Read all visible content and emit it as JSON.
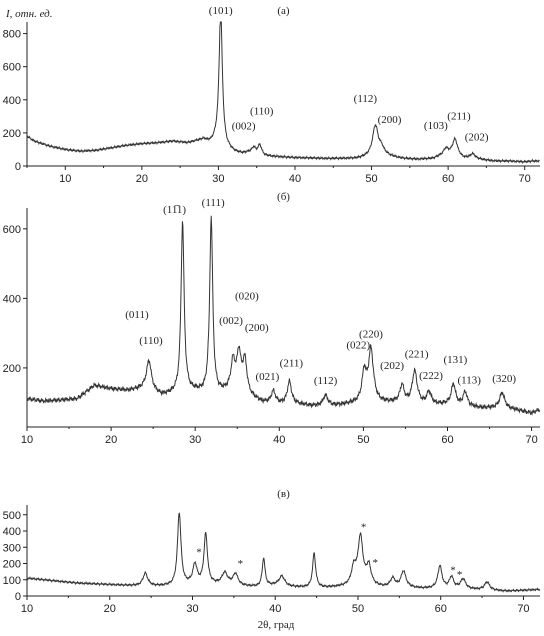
{
  "figure": {
    "y_label": "I, отн. ед.",
    "x_label": "2θ, град",
    "colors": {
      "line": "#333333",
      "axis": "#222222"
    }
  },
  "chart_data": [
    {
      "type": "line",
      "panel": "(а)",
      "xlim": [
        5,
        72
      ],
      "ylim": [
        0,
        870
      ],
      "xticks": [
        "10",
        "20",
        "30",
        "40",
        "50",
        "60",
        "70"
      ],
      "yticks": [
        "0",
        "200",
        "400",
        "600",
        "800"
      ],
      "baseline": [
        [
          5,
          180
        ],
        [
          6,
          150
        ],
        [
          8,
          120
        ],
        [
          10,
          100
        ],
        [
          12,
          90
        ],
        [
          14,
          95
        ],
        [
          16,
          110
        ],
        [
          18,
          125
        ],
        [
          20,
          135
        ],
        [
          22,
          140
        ],
        [
          24,
          150
        ],
        [
          26,
          140
        ],
        [
          27,
          150
        ],
        [
          28,
          160
        ],
        [
          29,
          140
        ],
        [
          30,
          160
        ],
        [
          31,
          110
        ],
        [
          32,
          85
        ],
        [
          33,
          75
        ],
        [
          34,
          80
        ],
        [
          36,
          60
        ],
        [
          38,
          55
        ],
        [
          40,
          50
        ],
        [
          42,
          48
        ],
        [
          44,
          45
        ],
        [
          46,
          45
        ],
        [
          48,
          45
        ],
        [
          50,
          55
        ],
        [
          52,
          60
        ],
        [
          54,
          45
        ],
        [
          56,
          40
        ],
        [
          58,
          45
        ],
        [
          59,
          60
        ],
        [
          60,
          70
        ],
        [
          61,
          60
        ],
        [
          62,
          45
        ],
        [
          64,
          40
        ],
        [
          66,
          30
        ],
        [
          68,
          30
        ],
        [
          70,
          25
        ],
        [
          71,
          30
        ]
      ],
      "peaks": [
        {
          "label": "(101)",
          "x": 30.3,
          "height": 800,
          "width": 0.25
        },
        {
          "label": "(002)",
          "x": 34.6,
          "height": 35,
          "width": 0.3
        },
        {
          "label": "(110)",
          "x": 35.4,
          "height": 60,
          "width": 0.3
        },
        {
          "label": "(112)",
          "x": 50.5,
          "height": 185,
          "width": 0.45
        },
        {
          "label": "(200)",
          "x": 51.3,
          "height": 40,
          "width": 0.4
        },
        {
          "label": "(103)",
          "x": 59.7,
          "height": 35,
          "width": 0.35
        },
        {
          "label": "(211)",
          "x": 60.9,
          "height": 100,
          "width": 0.4
        },
        {
          "label": "(202)",
          "x": 63.2,
          "height": 30,
          "width": 0.4
        }
      ]
    },
    {
      "type": "line",
      "panel": "(б)",
      "xlim": [
        10,
        71
      ],
      "ylim": [
        30,
        660
      ],
      "xticks": [
        "10",
        "20",
        "30",
        "40",
        "50",
        "60",
        "70"
      ],
      "yticks": [
        "200",
        "400",
        "600"
      ],
      "baseline": [
        [
          10,
          112
        ],
        [
          12,
          105
        ],
        [
          14,
          108
        ],
        [
          16,
          112
        ],
        [
          18,
          150
        ],
        [
          20,
          140
        ],
        [
          22,
          135
        ],
        [
          24,
          140
        ],
        [
          26,
          120
        ],
        [
          28,
          125
        ],
        [
          30,
          130
        ],
        [
          32,
          120
        ],
        [
          34,
          130
        ],
        [
          36,
          120
        ],
        [
          38,
          100
        ],
        [
          40,
          95
        ],
        [
          42,
          95
        ],
        [
          44,
          90
        ],
        [
          46,
          90
        ],
        [
          48,
          95
        ],
        [
          50,
          100
        ],
        [
          52,
          100
        ],
        [
          54,
          100
        ],
        [
          56,
          95
        ],
        [
          58,
          95
        ],
        [
          60,
          95
        ],
        [
          62,
          90
        ],
        [
          64,
          85
        ],
        [
          66,
          85
        ],
        [
          68,
          80
        ],
        [
          70,
          70
        ],
        [
          71,
          80
        ]
      ],
      "peaks": [
        {
          "label": "(110)",
          "x": 24.5,
          "height": 85,
          "width": 0.35
        },
        {
          "label": "(11̅1)",
          "x": 28.5,
          "height": 495,
          "width": 0.22
        },
        {
          "label": "(111)",
          "x": 31.9,
          "height": 510,
          "width": 0.22
        },
        {
          "label": "(002)",
          "x": 34.5,
          "height": 85,
          "width": 0.3
        },
        {
          "label": "(020)",
          "x": 35.2,
          "height": 110,
          "width": 0.3
        },
        {
          "label": "(200)",
          "x": 35.9,
          "height": 95,
          "width": 0.3
        },
        {
          "label": "(021)",
          "x": 39.3,
          "height": 35,
          "width": 0.3
        },
        {
          "label": "(211)",
          "x": 41.2,
          "height": 65,
          "width": 0.3
        },
        {
          "label": "(112)",
          "x": 45.5,
          "height": 30,
          "width": 0.35
        },
        {
          "label": "(022)",
          "x": 50.1,
          "height": 85,
          "width": 0.3
        },
        {
          "label": "(220)",
          "x": 50.9,
          "height": 150,
          "width": 0.35
        },
        {
          "label": "(202)",
          "x": 54.6,
          "height": 50,
          "width": 0.3
        },
        {
          "label": "(221)",
          "x": 56.1,
          "height": 95,
          "width": 0.35
        },
        {
          "label": "(222)",
          "x": 57.8,
          "height": 35,
          "width": 0.3
        },
        {
          "label": "(131)",
          "x": 60.7,
          "height": 60,
          "width": 0.3
        },
        {
          "label": "(113)",
          "x": 62.1,
          "height": 40,
          "width": 0.3
        },
        {
          "label": "(320)",
          "x": 66.5,
          "height": 45,
          "width": 0.35
        }
      ],
      "extra_labels": [
        {
          "label": "(011)",
          "x": 24.5
        }
      ]
    },
    {
      "type": "line",
      "panel": "(в)",
      "xlim": [
        10,
        72
      ],
      "ylim": [
        0,
        560
      ],
      "xticks": [
        "10",
        "20",
        "30",
        "40",
        "50",
        "60",
        "70"
      ],
      "yticks": [
        "0",
        "100",
        "200",
        "300",
        "400",
        "500"
      ],
      "baseline": [
        [
          10,
          110
        ],
        [
          12,
          100
        ],
        [
          14,
          90
        ],
        [
          16,
          80
        ],
        [
          18,
          75
        ],
        [
          20,
          70
        ],
        [
          22,
          65
        ],
        [
          24,
          60
        ],
        [
          26,
          60
        ],
        [
          28,
          60
        ],
        [
          30,
          70
        ],
        [
          32,
          70
        ],
        [
          34,
          70
        ],
        [
          36,
          60
        ],
        [
          38,
          55
        ],
        [
          40,
          65
        ],
        [
          42,
          55
        ],
        [
          44,
          50
        ],
        [
          46,
          50
        ],
        [
          48,
          55
        ],
        [
          50,
          55
        ],
        [
          52,
          55
        ],
        [
          54,
          50
        ],
        [
          56,
          50
        ],
        [
          58,
          45
        ],
        [
          60,
          45
        ],
        [
          62,
          45
        ],
        [
          64,
          40
        ],
        [
          66,
          35
        ],
        [
          68,
          30
        ],
        [
          70,
          35
        ],
        [
          72,
          40
        ]
      ],
      "peaks": [
        {
          "x": 24.3,
          "height": 80,
          "width": 0.35
        },
        {
          "x": 28.4,
          "height": 450,
          "width": 0.25
        },
        {
          "x": 30.3,
          "height": 120,
          "width": 0.3
        },
        {
          "x": 31.6,
          "height": 310,
          "width": 0.25
        },
        {
          "x": 33.9,
          "height": 70,
          "width": 0.4
        },
        {
          "x": 35.2,
          "height": 70,
          "width": 0.35
        },
        {
          "x": 38.6,
          "height": 175,
          "width": 0.2
        },
        {
          "x": 40.8,
          "height": 60,
          "width": 0.4
        },
        {
          "x": 44.7,
          "height": 215,
          "width": 0.22
        },
        {
          "x": 49.5,
          "height": 110,
          "width": 0.35
        },
        {
          "x": 50.3,
          "height": 300,
          "width": 0.35
        },
        {
          "x": 51.3,
          "height": 120,
          "width": 0.35
        },
        {
          "x": 54.2,
          "height": 55,
          "width": 0.35
        },
        {
          "x": 55.5,
          "height": 100,
          "width": 0.35
        },
        {
          "x": 59.9,
          "height": 140,
          "width": 0.3
        },
        {
          "x": 61.3,
          "height": 70,
          "width": 0.3
        },
        {
          "x": 62.7,
          "height": 60,
          "width": 0.35
        },
        {
          "x": 65.6,
          "height": 50,
          "width": 0.35
        }
      ],
      "markers": [
        {
          "label": "*",
          "x": 30.3
        },
        {
          "label": "*",
          "x": 35.3
        },
        {
          "label": "*",
          "x": 50.2
        },
        {
          "label": "*",
          "x": 51.6
        },
        {
          "label": "*",
          "x": 61.0
        },
        {
          "label": "*",
          "x": 61.8
        }
      ]
    }
  ]
}
